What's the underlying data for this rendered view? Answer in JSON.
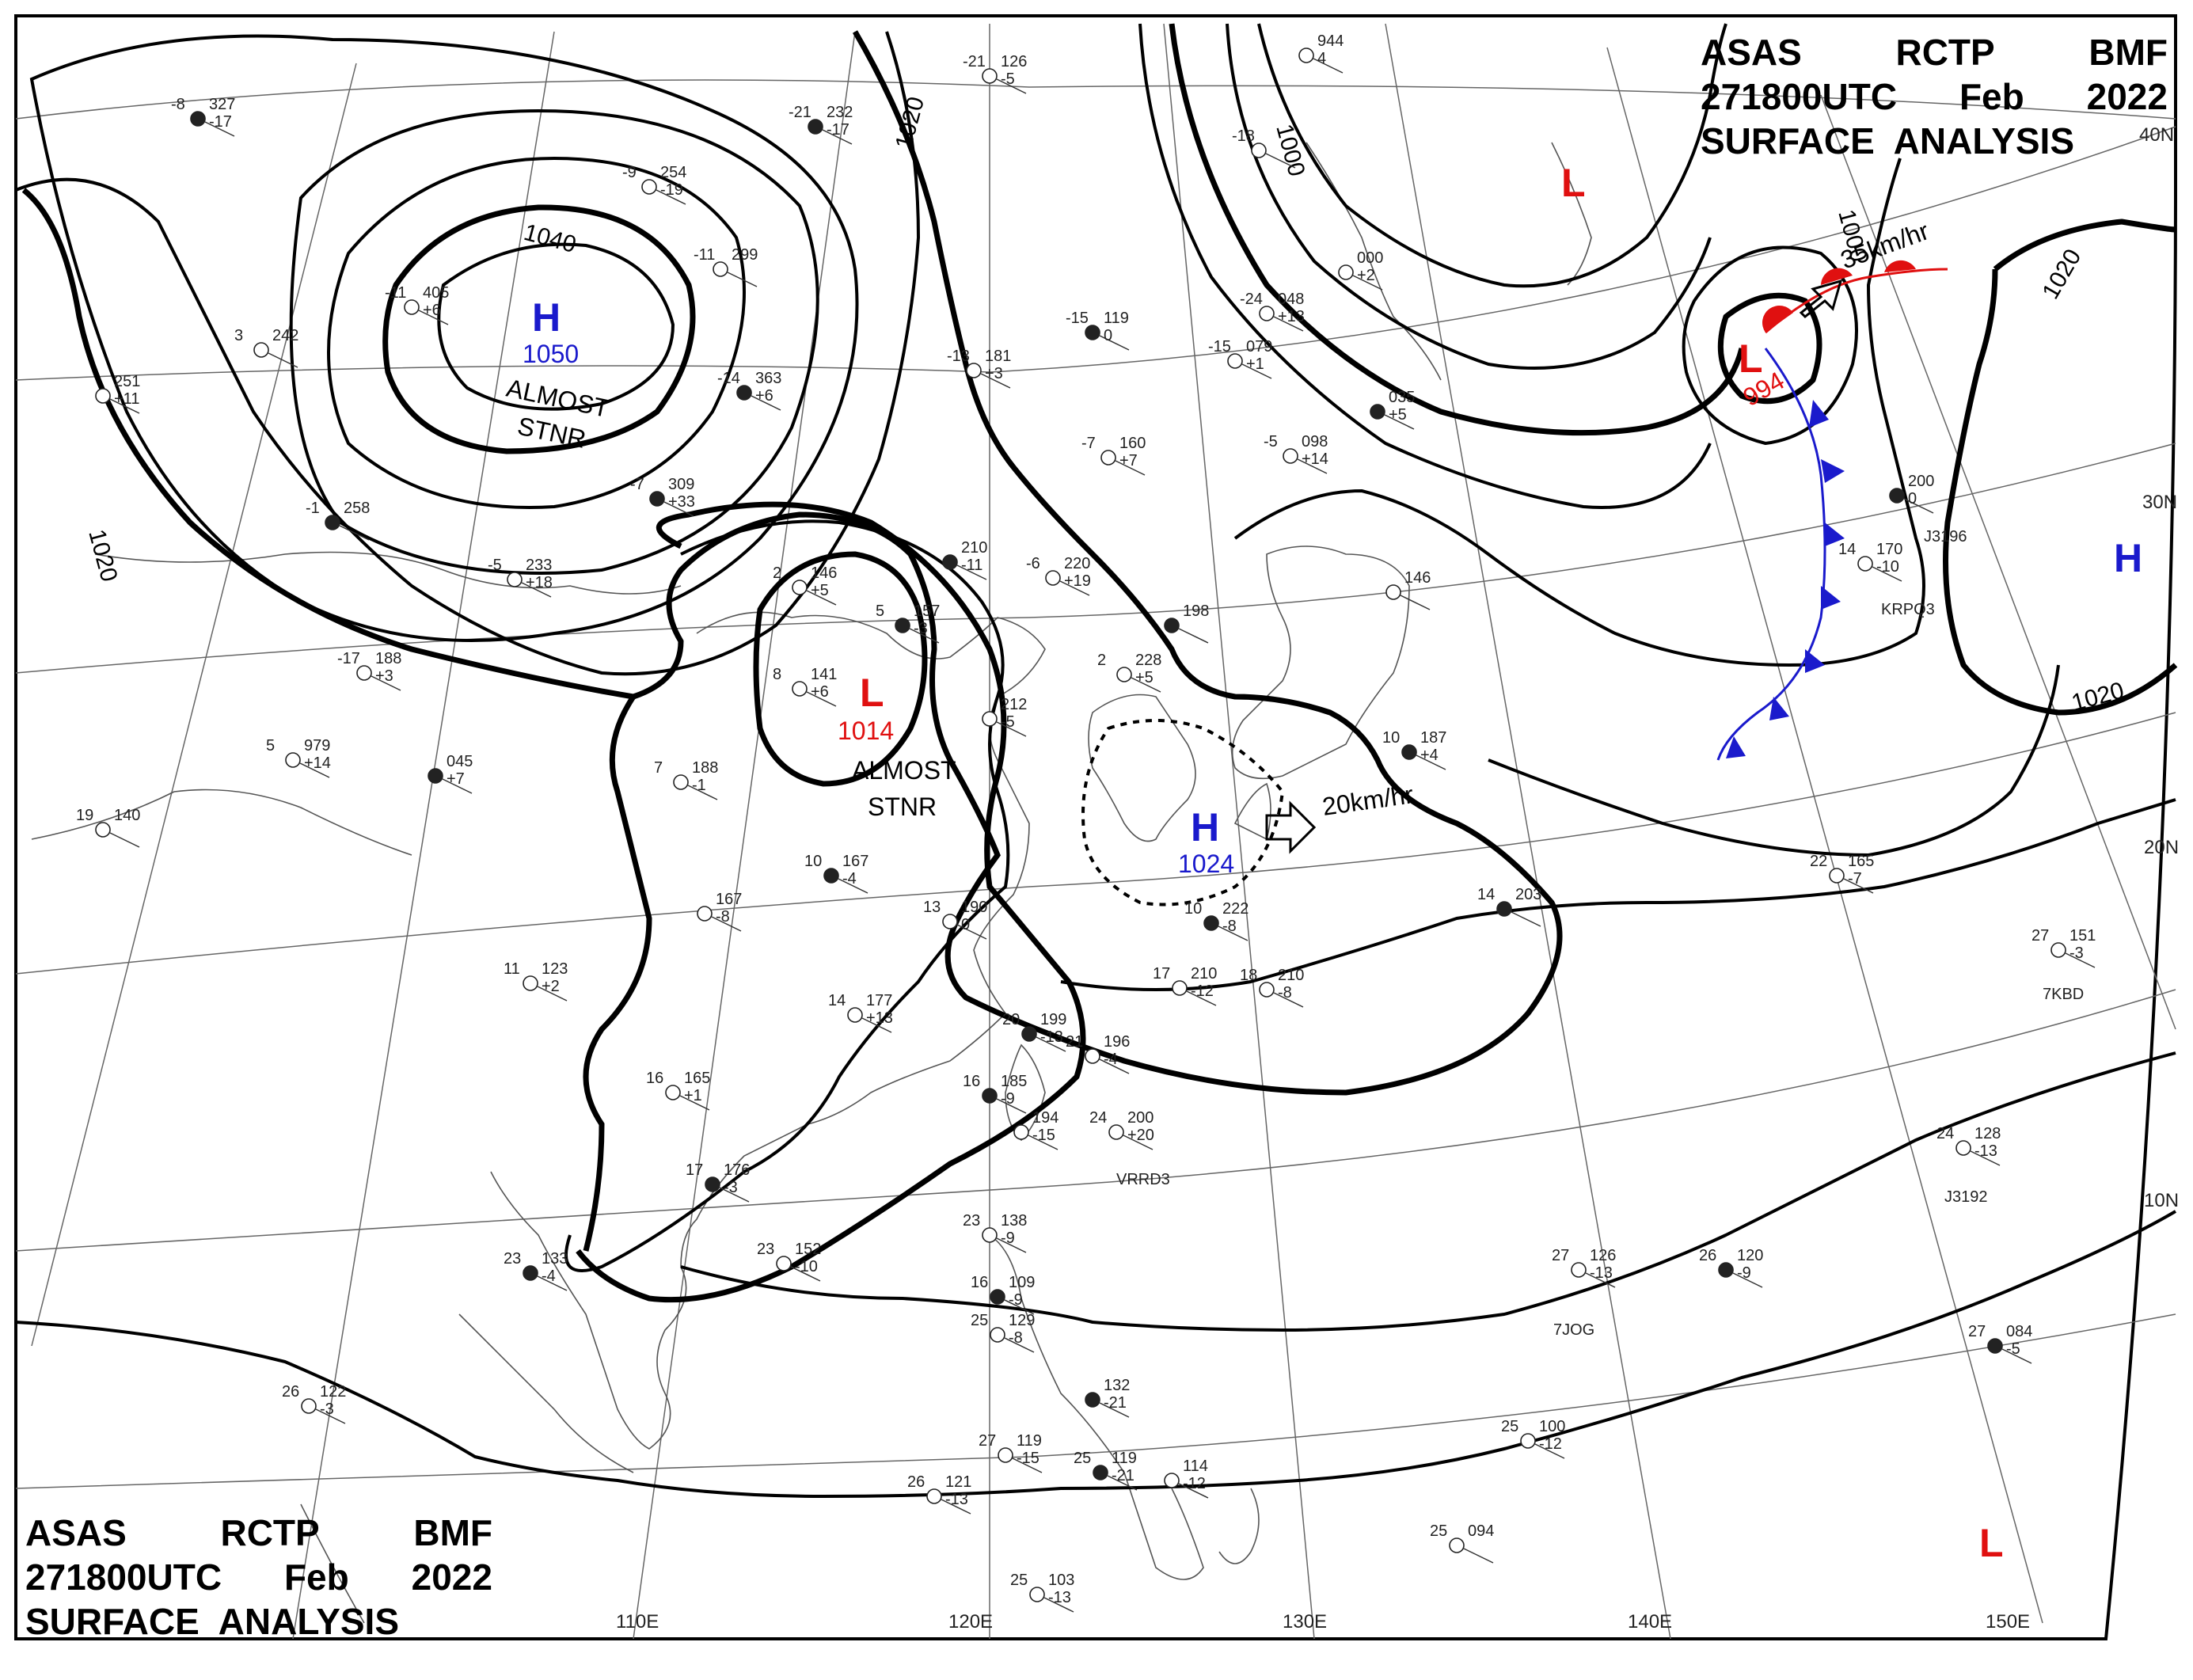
{
  "header": {
    "line1": [
      "ASAS",
      "RCTP",
      "BMF"
    ],
    "line2": [
      "271800UTC",
      "Feb",
      "2022"
    ],
    "line3": "SURFACE  ANALYSIS"
  },
  "longitudes": [
    "110E",
    "120E",
    "130E",
    "140E",
    "150E"
  ],
  "latitudes": [
    "40N",
    "30N",
    "20N",
    "10N"
  ],
  "isobar_labels": [
    "1040",
    "1020",
    "1020",
    "1000",
    "1000",
    "1020",
    "1020"
  ],
  "systems": [
    {
      "type": "H",
      "value": "1050",
      "note": "ALMOST\nSTNR",
      "color": "#1a1acc"
    },
    {
      "type": "L",
      "value": "1014",
      "note": "ALMOST\nSTNR",
      "color": "#e01010"
    },
    {
      "type": "H",
      "value": "1024",
      "note": "20km/hr",
      "color": "#1a1acc"
    },
    {
      "type": "L",
      "value": "994",
      "note": "35km/hr",
      "color": "#e01010"
    },
    {
      "type": "L",
      "value": "",
      "note": "",
      "color": "#e01010"
    },
    {
      "type": "H",
      "value": "",
      "note": "",
      "color": "#1a1acc"
    },
    {
      "type": "L",
      "value": "",
      "note": "",
      "color": "#e01010"
    }
  ],
  "stations": [
    {
      "t": "-8",
      "p": "327",
      "d": "-17"
    },
    {
      "t": "-9",
      "p": "254",
      "d": "-19"
    },
    {
      "t": "-11",
      "p": "405",
      "d": "+6"
    },
    {
      "t": "-14",
      "p": "363",
      "d": "+6"
    },
    {
      "t": "-11",
      "p": "299",
      "d": ""
    },
    {
      "t": "-13",
      "p": "181",
      "d": "+3"
    },
    {
      "t": "-15",
      "p": "119",
      "d": "0"
    },
    {
      "t": "-15",
      "p": "079",
      "d": "+1"
    },
    {
      "t": "-24",
      "p": "048",
      "d": "+13"
    },
    {
      "t": "-7",
      "p": "309",
      "d": "+33"
    },
    {
      "t": "-7",
      "p": "160",
      "d": "+7"
    },
    {
      "t": "-5",
      "p": "098",
      "d": "+14"
    },
    {
      "t": "",
      "p": "035",
      "d": "+5"
    },
    {
      "t": "",
      "p": "000",
      "d": "+2"
    },
    {
      "t": "-5",
      "p": "233",
      "d": "+18"
    },
    {
      "t": "-1",
      "p": "258",
      "d": ""
    },
    {
      "t": "",
      "p": "251",
      "d": "+11"
    },
    {
      "t": "3",
      "p": "242",
      "d": ""
    },
    {
      "t": "",
      "p": "210",
      "d": "-11"
    },
    {
      "t": "-6",
      "p": "220",
      "d": "+19"
    },
    {
      "t": "2",
      "p": "146",
      "d": "+5"
    },
    {
      "t": "5",
      "p": "157",
      "d": "-3"
    },
    {
      "t": "8",
      "p": "141",
      "d": "+6"
    },
    {
      "t": "2",
      "p": "228",
      "d": "+5"
    },
    {
      "t": "",
      "p": "198",
      "d": ""
    },
    {
      "t": "",
      "p": "212",
      "d": "-5"
    },
    {
      "t": "",
      "p": "146",
      "d": ""
    },
    {
      "t": "10",
      "p": "187",
      "d": "+4"
    },
    {
      "t": "-17",
      "p": "188",
      "d": "+3"
    },
    {
      "t": "5",
      "p": "979",
      "d": "+14"
    },
    {
      "t": "",
      "p": "045",
      "d": "+7"
    },
    {
      "t": "19",
      "p": "140",
      "d": ""
    },
    {
      "t": "7",
      "p": "188",
      "d": "-1"
    },
    {
      "t": "10",
      "p": "167",
      "d": "-4"
    },
    {
      "t": "",
      "p": "167",
      "d": "-8"
    },
    {
      "t": "13",
      "p": "190",
      "d": "0"
    },
    {
      "t": "10",
      "p": "222",
      "d": "-8"
    },
    {
      "t": "17",
      "p": "210",
      "d": "-12"
    },
    {
      "t": "18",
      "p": "210",
      "d": "-8"
    },
    {
      "t": "14",
      "p": "203",
      "d": ""
    },
    {
      "t": "11",
      "p": "123",
      "d": "+2"
    },
    {
      "t": "14",
      "p": "177",
      "d": "+13"
    },
    {
      "t": "20",
      "p": "199",
      "d": "-13"
    },
    {
      "t": "21",
      "p": "196",
      "d": "-4"
    },
    {
      "t": "16",
      "p": "165",
      "d": "+1"
    },
    {
      "t": "16",
      "p": "185",
      "d": "-9"
    },
    {
      "t": "",
      "p": "194",
      "d": "-15"
    },
    {
      "t": "24",
      "p": "200",
      "d": "+20"
    },
    {
      "t": "17",
      "p": "176",
      "d": "-3"
    },
    {
      "t": "22",
      "p": "165",
      "d": "-7"
    },
    {
      "t": "27",
      "p": "151",
      "d": "-3"
    },
    {
      "t": "23",
      "p": "133",
      "d": "-4"
    },
    {
      "t": "23",
      "p": "152",
      "d": "-10"
    },
    {
      "t": "23",
      "p": "138",
      "d": "-9"
    },
    {
      "t": "16",
      "p": "109",
      "d": "-9"
    },
    {
      "t": "25",
      "p": "129",
      "d": "-8"
    },
    {
      "t": "27",
      "p": "126",
      "d": "-13"
    },
    {
      "t": "26",
      "p": "120",
      "d": "-9"
    },
    {
      "t": "24",
      "p": "128",
      "d": "-13"
    },
    {
      "t": "26",
      "p": "122",
      "d": "-3"
    },
    {
      "t": "",
      "p": "132",
      "d": "-21"
    },
    {
      "t": "27",
      "p": "119",
      "d": "-15"
    },
    {
      "t": "26",
      "p": "121",
      "d": "-13"
    },
    {
      "t": "25",
      "p": "119",
      "d": "-21"
    },
    {
      "t": "",
      "p": "114",
      "d": "-12"
    },
    {
      "t": "25",
      "p": "100",
      "d": "-12"
    },
    {
      "t": "27",
      "p": "084",
      "d": "-5"
    },
    {
      "t": "25",
      "p": "094",
      "d": ""
    },
    {
      "t": "25",
      "p": "103",
      "d": "-13"
    },
    {
      "t": "",
      "p": "200",
      "d": "0"
    },
    {
      "t": "14",
      "p": "170",
      "d": "-10"
    },
    {
      "t": "-21",
      "p": "126",
      "d": "-5"
    },
    {
      "t": "-21",
      "p": "232",
      "d": "-17"
    },
    {
      "t": "-18",
      "p": "",
      "d": ""
    },
    {
      "t": "",
      "p": "944",
      "d": "4"
    }
  ],
  "ship_ids": [
    "7KBD",
    "J3192",
    "7JOG",
    "VRRD3",
    "KRPQ3",
    "J3196"
  ]
}
